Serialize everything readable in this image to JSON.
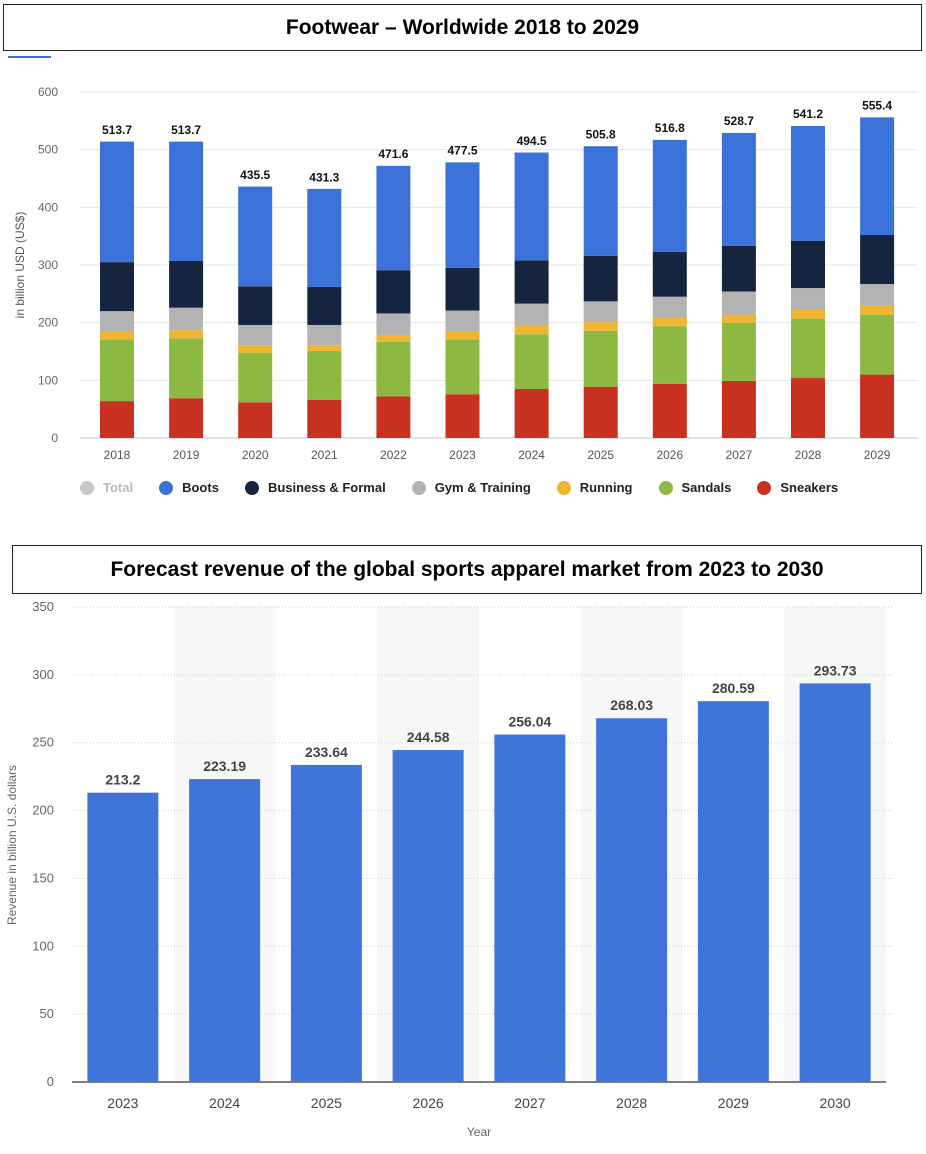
{
  "footwear": {
    "title": "Footwear – Worldwide 2018 to 2029",
    "chart_data": {
      "type": "bar",
      "stacked": true,
      "title": "Footwear – Worldwide 2018 to 2029",
      "xlabel": "",
      "ylabel": "in billion USD (US$)",
      "ylim": [
        0,
        600
      ],
      "yticks": [
        0,
        100,
        200,
        300,
        400,
        500,
        600
      ],
      "categories": [
        "2018",
        "2019",
        "2020",
        "2021",
        "2022",
        "2023",
        "2024",
        "2025",
        "2026",
        "2027",
        "2028",
        "2029"
      ],
      "totals": [
        513.7,
        513.7,
        435.5,
        431.3,
        471.6,
        477.5,
        494.5,
        505.8,
        516.8,
        528.7,
        541.2,
        555.4
      ],
      "total_labels": [
        "513.7",
        "513.7",
        "435.5",
        "431.3",
        "471.6",
        "477.5",
        "494.5",
        "505.8",
        "516.8",
        "528.7",
        "541.2",
        "555.4"
      ],
      "series": [
        {
          "name": "Sneakers",
          "color": "#c8311f",
          "values": [
            64,
            69,
            62,
            66,
            72,
            76,
            85,
            89,
            94,
            99,
            104,
            110
          ]
        },
        {
          "name": "Sandals",
          "color": "#8db842",
          "values": [
            107,
            104,
            86,
            85,
            95,
            95,
            95,
            97,
            100,
            101,
            103,
            104
          ]
        },
        {
          "name": "Running",
          "color": "#f2b531",
          "values": [
            13,
            14,
            13,
            10,
            12,
            13,
            15,
            15,
            14,
            14,
            15,
            16
          ]
        },
        {
          "name": "Gym & Training",
          "color": "#b3b3b3",
          "values": [
            36,
            39,
            35,
            35,
            37,
            37,
            38,
            36,
            37,
            40,
            38,
            37
          ]
        },
        {
          "name": "Business & Formal",
          "color": "#152540",
          "values": [
            85,
            81,
            67,
            66,
            75,
            74,
            75,
            79,
            78,
            79,
            82,
            85
          ]
        },
        {
          "name": "Boots",
          "color": "#3b72d9",
          "values": [
            209,
            207,
            173,
            170,
            181,
            183,
            187,
            190,
            194,
            196,
            199,
            204
          ]
        }
      ],
      "legend": [
        {
          "name": "Total",
          "color": "#c8c8c8",
          "faded": true
        },
        {
          "name": "Boots",
          "color": "#3b72d9"
        },
        {
          "name": "Business & Formal",
          "color": "#152540"
        },
        {
          "name": "Gym & Training",
          "color": "#b3b3b3"
        },
        {
          "name": "Running",
          "color": "#f2b531"
        },
        {
          "name": "Sandals",
          "color": "#8db842"
        },
        {
          "name": "Sneakers",
          "color": "#c8311f"
        }
      ],
      "grid": true
    }
  },
  "apparel": {
    "title": "Forecast revenue of the global sports apparel market from 2023 to 2030",
    "chart_data": {
      "type": "bar",
      "title": "Forecast revenue of the global sports apparel market from 2023 to 2030",
      "xlabel": "Year",
      "ylabel": "Revenue in billion U.S. dollars",
      "ylim": [
        0,
        350
      ],
      "yticks": [
        0,
        50,
        100,
        150,
        200,
        250,
        300,
        350
      ],
      "categories": [
        "2023",
        "2024",
        "2025",
        "2026",
        "2027",
        "2028",
        "2029",
        "2030"
      ],
      "values": [
        213.2,
        223.19,
        233.64,
        244.58,
        256.04,
        268.03,
        280.59,
        293.73
      ],
      "value_labels": [
        "213.2",
        "223.19",
        "233.64",
        "244.58",
        "256.04",
        "268.03",
        "280.59",
        "293.73"
      ],
      "bar_color": "#3f74d8",
      "grid": true
    }
  }
}
